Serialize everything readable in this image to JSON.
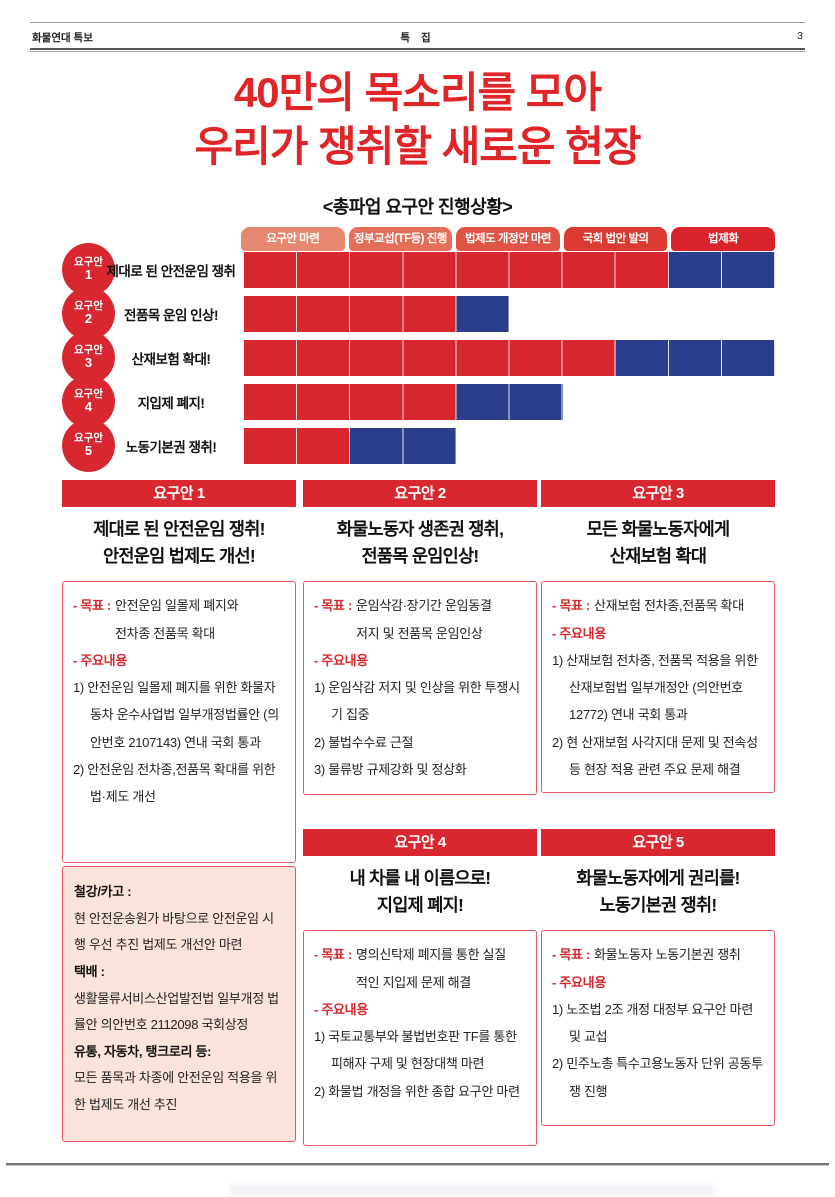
{
  "colors": {
    "red": "#d8272e",
    "blue": "#2b3e8c",
    "title_red": "#e02529",
    "border_red": "#e2595e"
  },
  "meta": {
    "left": "화물연대  특보",
    "center": "특 집",
    "page": "3"
  },
  "title": "40만의 목소리를 모아\n우리가 쟁취할 새로운 현장",
  "chart_subtitle": "<총파업 요구안 진행상황>",
  "chart": {
    "type": "progress-gantt",
    "total_units": 10,
    "stages": [
      {
        "label": "요구안 마련",
        "color": "#e8876f"
      },
      {
        "label": "정부교섭(TF등) 진행",
        "color": "#e46f59"
      },
      {
        "label": "법제도 개정안 마련",
        "color": "#df5444"
      },
      {
        "label": "국회 법안 발의",
        "color": "#da3a31"
      },
      {
        "label": "법제화",
        "color": "#d8232a"
      }
    ],
    "rows": [
      {
        "badge": "요구안",
        "num": "1",
        "label": "제대로 된 안전운임 쟁취",
        "red_units": 8,
        "blue_units": 2
      },
      {
        "badge": "요구안",
        "num": "2",
        "label": "전품목 운임 인상!",
        "red_units": 4,
        "blue_units": 1
      },
      {
        "badge": "요구안",
        "num": "3",
        "label": "산재보험 확대!",
        "red_units": 7,
        "blue_units": 3
      },
      {
        "badge": "요구안",
        "num": "4",
        "label": "지입제 폐지!",
        "red_units": 4,
        "blue_units": 2
      },
      {
        "badge": "요구안",
        "num": "5",
        "label": "노동기본권 쟁취!",
        "red_units": 2,
        "blue_units": 2
      }
    ]
  },
  "sections": [
    {
      "header": "요구안 1",
      "heading": "제대로 된 안전운임 쟁취!\n안전운임 법제도 개선!",
      "goal_label": "- 목표 :",
      "goal": "안전운임 일몰제 폐지와\n전차종 전품목 확대",
      "details_label": "- 주요내용",
      "details": [
        "1) 안전운임 일몰제 폐지를 위한 화물자동차 운수사업법 일부개정법률안 (의안번호 2107143) 연내 국회 통과",
        "2) 안전운임 전차종,전품목 확대를 위한 법·제도 개선"
      ]
    },
    {
      "header": "요구안 2",
      "heading": "화물노동자 생존권 쟁취,\n전품목 운임인상!",
      "goal_label": "- 목표 :",
      "goal": "운임삭감·장기간 운임동결\n저지 및 전품목 운임인상",
      "details_label": "- 주요내용",
      "details": [
        "1) 운임삭감 저지 및 인상을 위한 투쟁시기 집중",
        "2) 불법수수료 근절",
        "3) 물류방 규제강화 및 정상화"
      ]
    },
    {
      "header": "요구안 3",
      "heading": "모든 화물노동자에게\n산재보험 확대",
      "goal_label": "- 목표 :",
      "goal": "산재보험 전차종,전품목 확대",
      "details_label": "- 주요내용",
      "details": [
        "1) 산재보험 전차종, 전품목 적용을 위한 산재보험법 일부개정안 (의안번호 12772) 연내 국회 통과",
        "2) 현 산재보험 사각지대 문제 및 전속성 등 현장 적용 관련 주요 문제 해결"
      ]
    },
    {
      "header": "요구안 4",
      "heading": "내 차를 내 이름으로!\n지입제 폐지!",
      "goal_label": "- 목표 :",
      "goal": "명의신탁제 폐지를 통한 실질\n적인 지입제 문제 해결",
      "details_label": "- 주요내용",
      "details": [
        "1) 국토교통부와 불법번호판 TF를 통한 피해자 구제 및 현장대책 마련",
        "2) 화물법 개정을 위한 종합 요구안 마련"
      ]
    },
    {
      "header": "요구안 5",
      "heading": "화물노동자에게 권리를!\n노동기본권 쟁취!",
      "goal_label": "- 목표 :",
      "goal": "화물노동자 노동기본권 쟁취",
      "details_label": "- 주요내용",
      "details": [
        "1) 노조법 2조 개정 대정부 요구안 마련 및 교섭",
        "2) 민주노총 특수고용노동자 단위 공동투쟁 진행"
      ]
    }
  ],
  "extra_box": {
    "items": [
      {
        "title": "철강/카고 :",
        "body": "현 안전운송원가 바탕으로 안전운임 시행 우선 추진 법제도 개선안 마련"
      },
      {
        "title": "택배 :",
        "body": "생활물류서비스산업발전법 일부개정 법률안 의안번호 2112098 국회상정"
      },
      {
        "title": "유통, 자동차, 탱크로리 등:",
        "body": "모든 품목과 차종에 안전운임 적용을 위한 법제도 개선 추진"
      }
    ]
  }
}
